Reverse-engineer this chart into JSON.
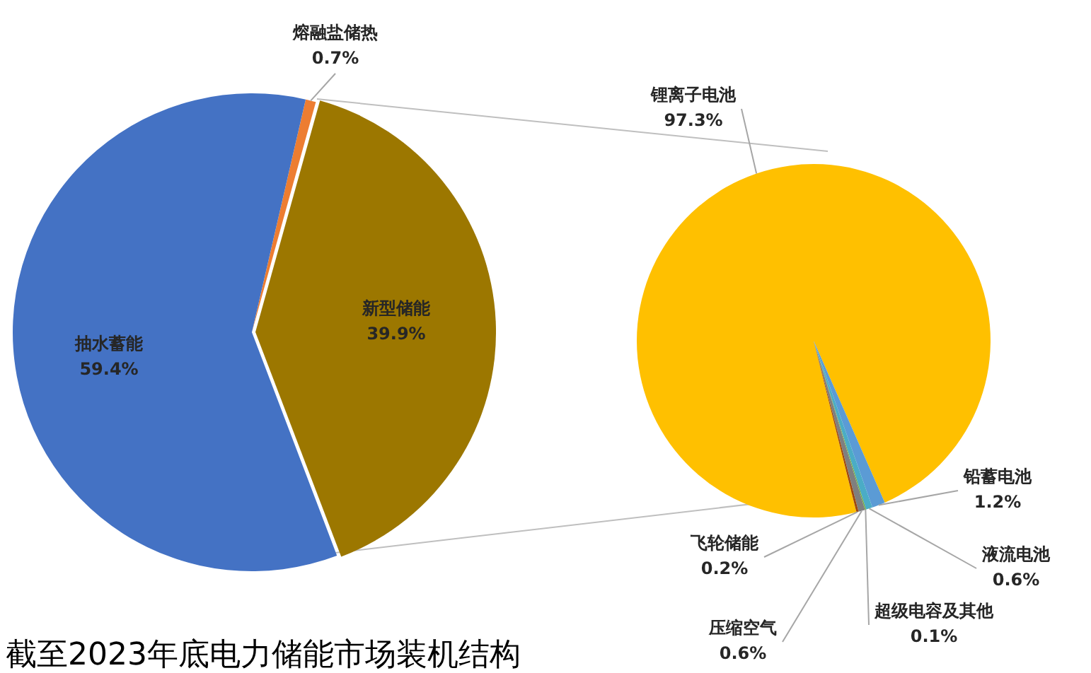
{
  "chart_data": [
    {
      "type": "pie",
      "title": "截至2023年底电力储能市场装机结构",
      "categories": [
        "熔融盐储热",
        "新型储能",
        "抽水蓄能"
      ],
      "values": [
        0.7,
        39.9,
        59.4
      ],
      "colors": [
        "#ed7d31",
        "#9c7700",
        "#4472c4"
      ],
      "value_labels": [
        "0.7%",
        "39.9%",
        "59.4%"
      ]
    },
    {
      "type": "pie",
      "categories": [
        "锂离子电池",
        "铅蓄电池",
        "液流电池",
        "超级电容及其他",
        "压缩空气",
        "飞轮储能"
      ],
      "values": [
        97.3,
        1.2,
        0.6,
        0.1,
        0.6,
        0.2
      ],
      "colors": [
        "#ffc000",
        "#5b9bd5",
        "#4bacc6",
        "#70ad47",
        "#7f7f7f",
        "#9e480e"
      ],
      "value_labels": [
        "97.3%",
        "1.2%",
        "0.6%",
        "0.1%",
        "0.6%",
        "0.2%"
      ]
    }
  ]
}
